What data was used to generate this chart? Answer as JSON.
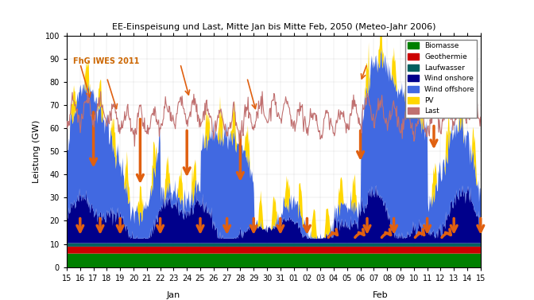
{
  "title": "EE-Einspeisung und Last, Mitte Jan bis Mitte Feb, 2050 (Meteo-Jahr 2006)",
  "ylabel": "Leistung (GW)",
  "xlabel_jan": "Jan",
  "xlabel_feb": "Feb",
  "watermark": "FhG IWES 2011",
  "ylim": [
    0,
    100
  ],
  "colors": {
    "biomasse": "#008000",
    "geothermie": "#cc0000",
    "laufwasser": "#006060",
    "wind_onshore": "#00008b",
    "wind_offshore": "#4169e1",
    "pv": "#ffd700",
    "last": "#c07070"
  },
  "legend_labels": [
    "Biomasse",
    "Geothermie",
    "Laufwasser",
    "Wind onshore",
    "Wind offshore",
    "PV",
    "Last"
  ],
  "biomasse_level": 6,
  "geothermie_level": 3,
  "laufwasser_level": 1.5,
  "n_points": 672
}
